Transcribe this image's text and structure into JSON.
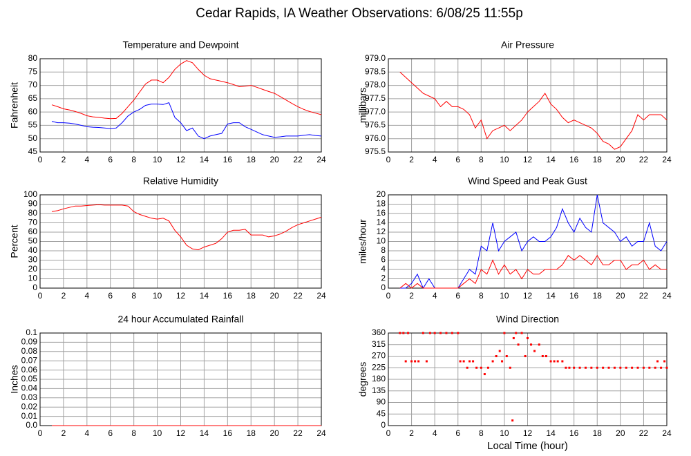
{
  "title": "Cedar Rapids, IA Weather Observations: 6/08/25 11:55p",
  "chart_data": [
    {
      "type": "line",
      "title": "Temperature and Dewpoint",
      "ylabel": "Fahrenheit",
      "x": [
        1,
        1.5,
        2,
        2.5,
        3,
        3.5,
        4,
        4.5,
        5,
        5.5,
        6,
        6.5,
        7,
        7.5,
        8,
        8.5,
        9,
        9.5,
        10,
        10.5,
        11,
        11.5,
        12,
        12.5,
        13,
        13.5,
        14,
        14.5,
        15,
        15.5,
        16,
        16.5,
        17,
        17.5,
        18,
        18.5,
        19,
        19.5,
        20,
        20.5,
        21,
        21.5,
        22,
        22.5,
        23,
        23.5,
        24
      ],
      "series": [
        {
          "color": "#ff0000",
          "values": [
            62.7,
            62,
            61.2,
            60.8,
            60.2,
            59.5,
            58.6,
            58.2,
            58,
            57.7,
            57.5,
            57.6,
            59.5,
            62,
            64.5,
            67.5,
            70.5,
            72,
            72,
            71,
            73,
            76,
            78,
            79.3,
            78.5,
            76,
            73.8,
            72.5,
            72,
            71.5,
            71,
            70.3,
            69.5,
            69.7,
            70,
            69.3,
            68.5,
            67.7,
            67,
            65.8,
            64.5,
            63.2,
            62,
            61,
            60.2,
            59.6,
            59
          ]
        },
        {
          "color": "#0000ff",
          "values": [
            56.5,
            56,
            56,
            55.8,
            55.5,
            55,
            54.5,
            54.3,
            54.2,
            54,
            53.8,
            54,
            56,
            58.5,
            60,
            61,
            62.5,
            63,
            63,
            62.8,
            63.5,
            58,
            56,
            53,
            54,
            51,
            50,
            51,
            51.5,
            52,
            55.5,
            56,
            56,
            54.5,
            53.5,
            52.5,
            51.5,
            51,
            50.5,
            50.7,
            51,
            51,
            51,
            51.3,
            51.5,
            51.2,
            51
          ]
        }
      ],
      "xlim": [
        0,
        24
      ],
      "xticks": [
        0,
        2,
        4,
        6,
        8,
        10,
        12,
        14,
        16,
        18,
        20,
        22,
        24
      ],
      "ylim": [
        45,
        80
      ],
      "yticks": [
        45,
        50,
        55,
        60,
        65,
        70,
        75,
        80
      ],
      "grid": true
    },
    {
      "type": "line",
      "title": "Air Pressure",
      "ylabel": "millibars",
      "x": [
        1,
        1.5,
        2,
        2.5,
        3,
        3.5,
        4,
        4.5,
        5,
        5.5,
        6,
        6.5,
        7,
        7.5,
        8,
        8.5,
        9,
        9.5,
        10,
        10.5,
        11,
        11.5,
        12,
        12.5,
        13,
        13.5,
        14,
        14.5,
        15,
        15.5,
        16,
        16.5,
        17,
        17.5,
        18,
        18.5,
        19,
        19.5,
        20,
        20.5,
        21,
        21.5,
        22,
        22.5,
        23,
        23.5,
        24
      ],
      "series": [
        {
          "color": "#ff0000",
          "values": [
            978.5,
            978.3,
            978.1,
            977.9,
            977.7,
            977.6,
            977.5,
            977.2,
            977.4,
            977.2,
            977.2,
            977.1,
            976.9,
            976.4,
            976.7,
            976.0,
            976.3,
            976.4,
            976.5,
            976.3,
            976.5,
            976.7,
            977.0,
            977.2,
            977.4,
            977.7,
            977.3,
            977.1,
            976.8,
            976.6,
            976.7,
            976.6,
            976.5,
            976.4,
            976.2,
            975.9,
            975.8,
            975.6,
            975.7,
            976.0,
            976.3,
            976.9,
            976.7,
            976.9,
            976.9,
            976.9,
            976.7
          ]
        }
      ],
      "xlim": [
        0,
        24
      ],
      "xticks": [
        0,
        2,
        4,
        6,
        8,
        10,
        12,
        14,
        16,
        18,
        20,
        22,
        24
      ],
      "ylim": [
        975.5,
        979
      ],
      "yticks": [
        975.5,
        {
          "value": 976,
          "label": "976.0"
        },
        976.5,
        {
          "value": 977,
          "label": "977.0"
        },
        977.5,
        {
          "value": 978,
          "label": "978.0"
        },
        978.5,
        {
          "value": 979,
          "label": "979.0"
        }
      ],
      "grid": true
    },
    {
      "type": "line",
      "title": "Relative Humidity",
      "ylabel": "Percent",
      "x": [
        1,
        1.5,
        2,
        2.5,
        3,
        3.5,
        4,
        4.5,
        5,
        5.5,
        6,
        6.5,
        7,
        7.5,
        8,
        8.5,
        9,
        9.5,
        10,
        10.5,
        11,
        11.5,
        12,
        12.5,
        13,
        13.5,
        14,
        14.5,
        15,
        15.5,
        16,
        16.5,
        17,
        17.5,
        18,
        18.5,
        19,
        19.5,
        20,
        20.5,
        21,
        21.5,
        22,
        22.5,
        23,
        23.5,
        24
      ],
      "series": [
        {
          "color": "#ff0000",
          "values": [
            82,
            83,
            85,
            86.5,
            88,
            88,
            88.5,
            89,
            89.5,
            89,
            89,
            89,
            89,
            88,
            82,
            79,
            77,
            75,
            74,
            75,
            72,
            62,
            55,
            46,
            42,
            41,
            44,
            46,
            48,
            53,
            60,
            62,
            62,
            63,
            57,
            57,
            57,
            55,
            56,
            58,
            61,
            65,
            68,
            70,
            72,
            74,
            76
          ]
        }
      ],
      "xlim": [
        0,
        24
      ],
      "xticks": [
        0,
        2,
        4,
        6,
        8,
        10,
        12,
        14,
        16,
        18,
        20,
        22,
        24
      ],
      "ylim": [
        0,
        100
      ],
      "yticks": [
        0,
        10,
        20,
        30,
        40,
        50,
        60,
        70,
        80,
        90,
        100
      ],
      "grid": true
    },
    {
      "type": "line",
      "title": "Wind Speed and Peak Gust",
      "ylabel": "miles/hour",
      "x": [
        1,
        1.5,
        2,
        2.5,
        3,
        3.5,
        4,
        4.5,
        5,
        5.5,
        6,
        6.5,
        7,
        7.5,
        8,
        8.5,
        9,
        9.5,
        10,
        10.5,
        11,
        11.5,
        12,
        12.5,
        13,
        13.5,
        14,
        14.5,
        15,
        15.5,
        16,
        16.5,
        17,
        17.5,
        18,
        18.5,
        19,
        19.5,
        20,
        20.5,
        21,
        21.5,
        22,
        22.5,
        23,
        23.5,
        24
      ],
      "series": [
        {
          "color": "#0000ff",
          "values": [
            0,
            0,
            1,
            3,
            0,
            2,
            0,
            0,
            0,
            0,
            0,
            2,
            4,
            3,
            9,
            8,
            14,
            8,
            10,
            11,
            12,
            8,
            10,
            11,
            10,
            10,
            11,
            13,
            17,
            14,
            12,
            15,
            13,
            12,
            20,
            14,
            13,
            12,
            10,
            11,
            9,
            10,
            10,
            14,
            9,
            8,
            10
          ]
        },
        {
          "color": "#ff0000",
          "values": [
            0,
            1,
            0,
            1,
            0,
            0,
            0,
            0,
            0,
            0,
            0,
            1,
            2,
            1,
            4,
            3,
            6,
            3,
            5,
            3,
            4,
            2,
            4,
            3,
            3,
            4,
            4,
            4,
            5,
            7,
            6,
            7,
            6,
            5,
            7,
            5,
            5,
            6,
            6,
            4,
            5,
            5,
            6,
            4,
            5,
            4,
            4
          ]
        }
      ],
      "xlim": [
        0,
        24
      ],
      "xticks": [
        0,
        2,
        4,
        6,
        8,
        10,
        12,
        14,
        16,
        18,
        20,
        22,
        24
      ],
      "ylim": [
        0,
        20
      ],
      "yticks": [
        0,
        2,
        4,
        6,
        8,
        10,
        12,
        14,
        16,
        18,
        20
      ],
      "grid": true
    },
    {
      "type": "line",
      "title": "24 hour Accumulated Rainfall",
      "ylabel": "Inches",
      "x": [
        1,
        24
      ],
      "series": [
        {
          "color": "#ff0000",
          "values": [
            0,
            0
          ]
        }
      ],
      "xlim": [
        0,
        24
      ],
      "xticks": [
        0,
        2,
        4,
        6,
        8,
        10,
        12,
        14,
        16,
        18,
        20,
        22,
        24
      ],
      "ylim": [
        0,
        0.1
      ],
      "yticks": [
        {
          "value": 0,
          "label": "0.0"
        },
        0.01,
        0.02,
        0.03,
        0.04,
        0.05,
        0.06,
        0.07,
        0.08,
        0.09,
        0.1
      ],
      "grid": true
    },
    {
      "type": "scatter",
      "title": "Wind Direction",
      "ylabel": "degrees",
      "xlabel": "Local Time (hour)",
      "x": [
        1,
        1.3,
        1.5,
        1.7,
        2,
        2.3,
        2.6,
        3,
        3.3,
        3.6,
        4,
        4.5,
        5,
        5.5,
        6,
        6.2,
        6.5,
        6.8,
        7,
        7.3,
        7.6,
        8,
        8.3,
        8.6,
        9,
        9.3,
        9.6,
        9.8,
        10,
        10.2,
        10.5,
        10.7,
        10.8,
        11,
        11.2,
        11.5,
        11.8,
        12,
        12.3,
        12.6,
        13,
        13.3,
        13.6,
        14,
        14.3,
        14.6,
        15,
        15.3,
        15.6,
        16,
        16.5,
        17,
        17.5,
        18,
        18.5,
        19,
        19.5,
        20,
        20.5,
        21,
        21.5,
        22,
        22.5,
        23,
        23.2,
        23.5,
        23.8,
        24
      ],
      "series": [
        {
          "color": "#ff0000",
          "values": [
            360,
            360,
            250,
            360,
            250,
            250,
            250,
            360,
            250,
            360,
            360,
            360,
            360,
            360,
            360,
            250,
            250,
            225,
            250,
            250,
            225,
            225,
            200,
            225,
            250,
            270,
            290,
            250,
            360,
            270,
            225,
            20,
            340,
            360,
            315,
            360,
            270,
            340,
            315,
            290,
            315,
            270,
            270,
            250,
            250,
            250,
            250,
            225,
            225,
            225,
            225,
            225,
            225,
            225,
            225,
            225,
            225,
            225,
            225,
            225,
            225,
            225,
            225,
            225,
            250,
            225,
            250,
            225
          ]
        }
      ],
      "xlim": [
        0,
        24
      ],
      "xticks": [
        0,
        2,
        4,
        6,
        8,
        10,
        12,
        14,
        16,
        18,
        20,
        22,
        24
      ],
      "ylim": [
        0,
        360
      ],
      "yticks": [
        0,
        45,
        90,
        135,
        180,
        225,
        270,
        315,
        360
      ],
      "grid": true
    }
  ]
}
